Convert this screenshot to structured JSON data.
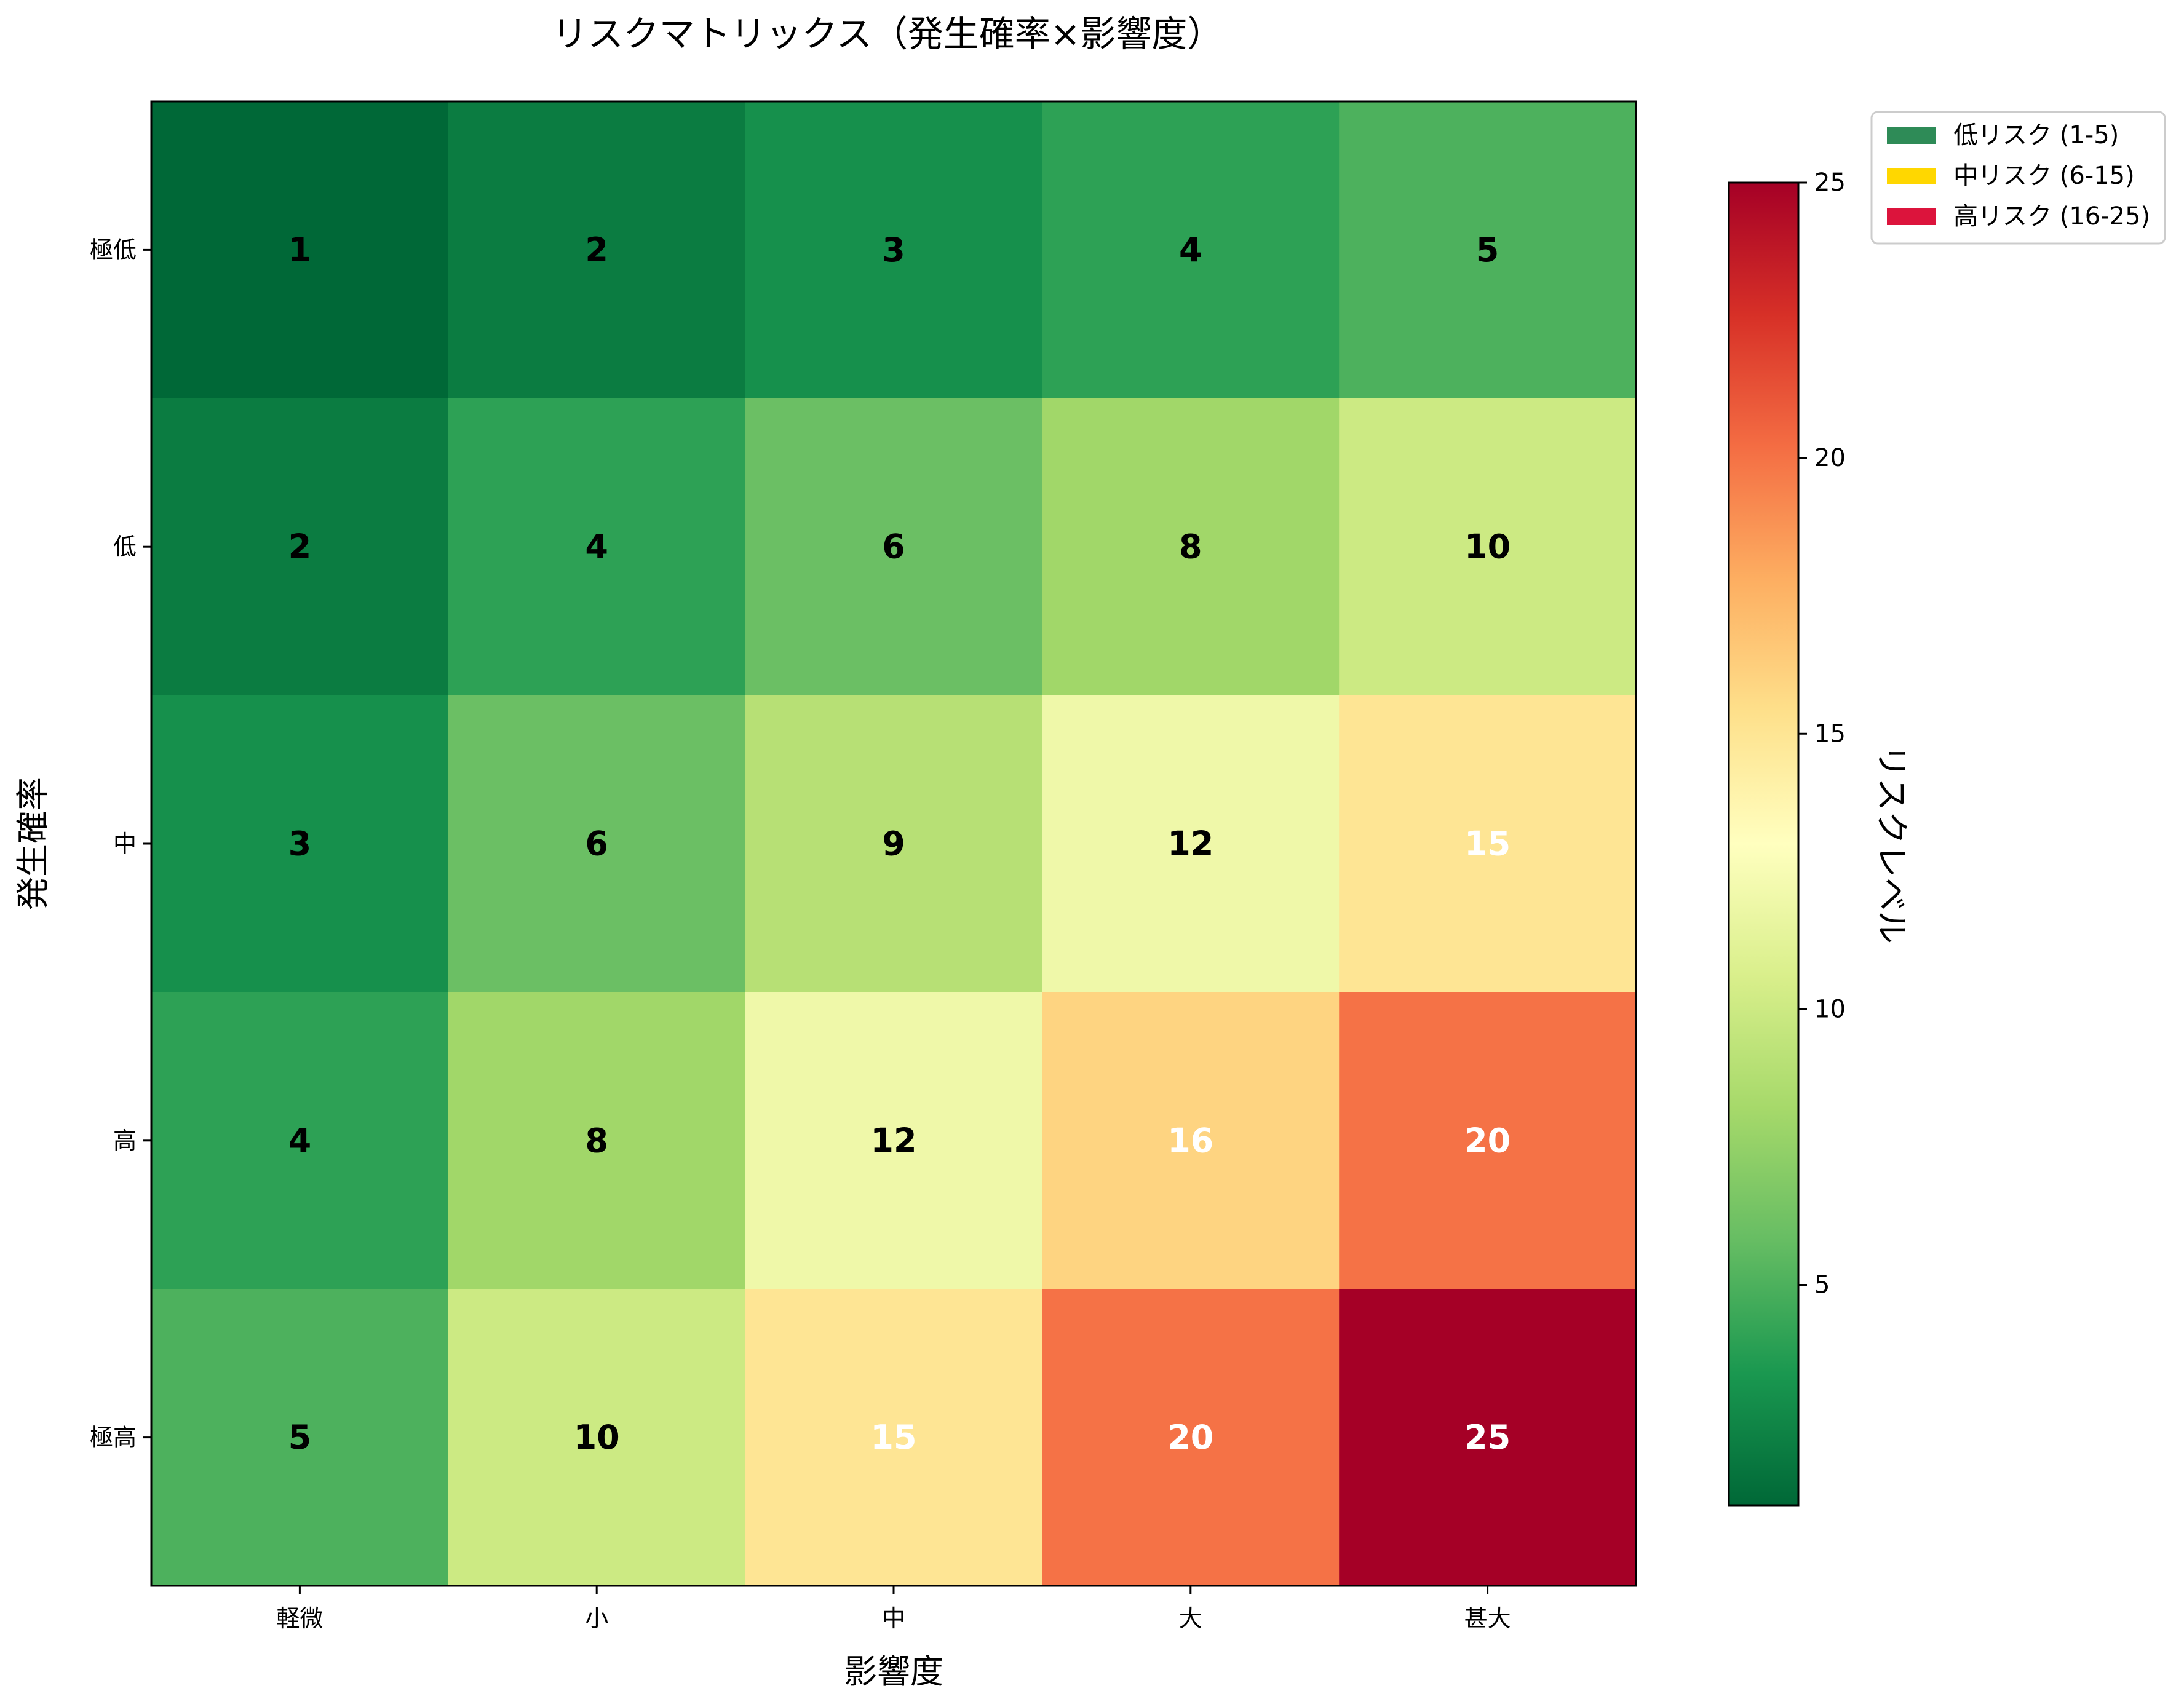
{
  "chart_data": {
    "type": "heatmap",
    "title": "リスクマトリックス（発生確率×影響度）",
    "xlabel": "影響度",
    "ylabel": "発生確率",
    "x_categories": [
      "軽微",
      "小",
      "中",
      "大",
      "甚大"
    ],
    "y_categories": [
      "極低",
      "低",
      "中",
      "高",
      "極高"
    ],
    "values": [
      [
        1,
        2,
        3,
        4,
        5
      ],
      [
        2,
        4,
        6,
        8,
        10
      ],
      [
        3,
        6,
        9,
        12,
        15
      ],
      [
        4,
        8,
        12,
        16,
        20
      ],
      [
        5,
        10,
        15,
        20,
        25
      ]
    ],
    "colormap": "RdYlGn_r",
    "vmin": 1,
    "vmax": 25,
    "colorbar": {
      "label": "リスクレベル",
      "ticks": [
        5,
        10,
        15,
        20,
        25
      ],
      "tick_labels": [
        "5",
        "10",
        "15",
        "20",
        "25"
      ]
    },
    "legend": {
      "placement": "upper-right-outside",
      "entries": [
        {
          "label": "低リスク (1-5)",
          "color": "#2e8b57"
        },
        {
          "label": "中リスク (6-15)",
          "color": "#ffd700"
        },
        {
          "label": "高リスク (16-25)",
          "color": "#dc143c"
        }
      ]
    },
    "cell_label_colors": {
      "dark": "#000000",
      "light": "#ffffff",
      "light_threshold": 15
    }
  }
}
